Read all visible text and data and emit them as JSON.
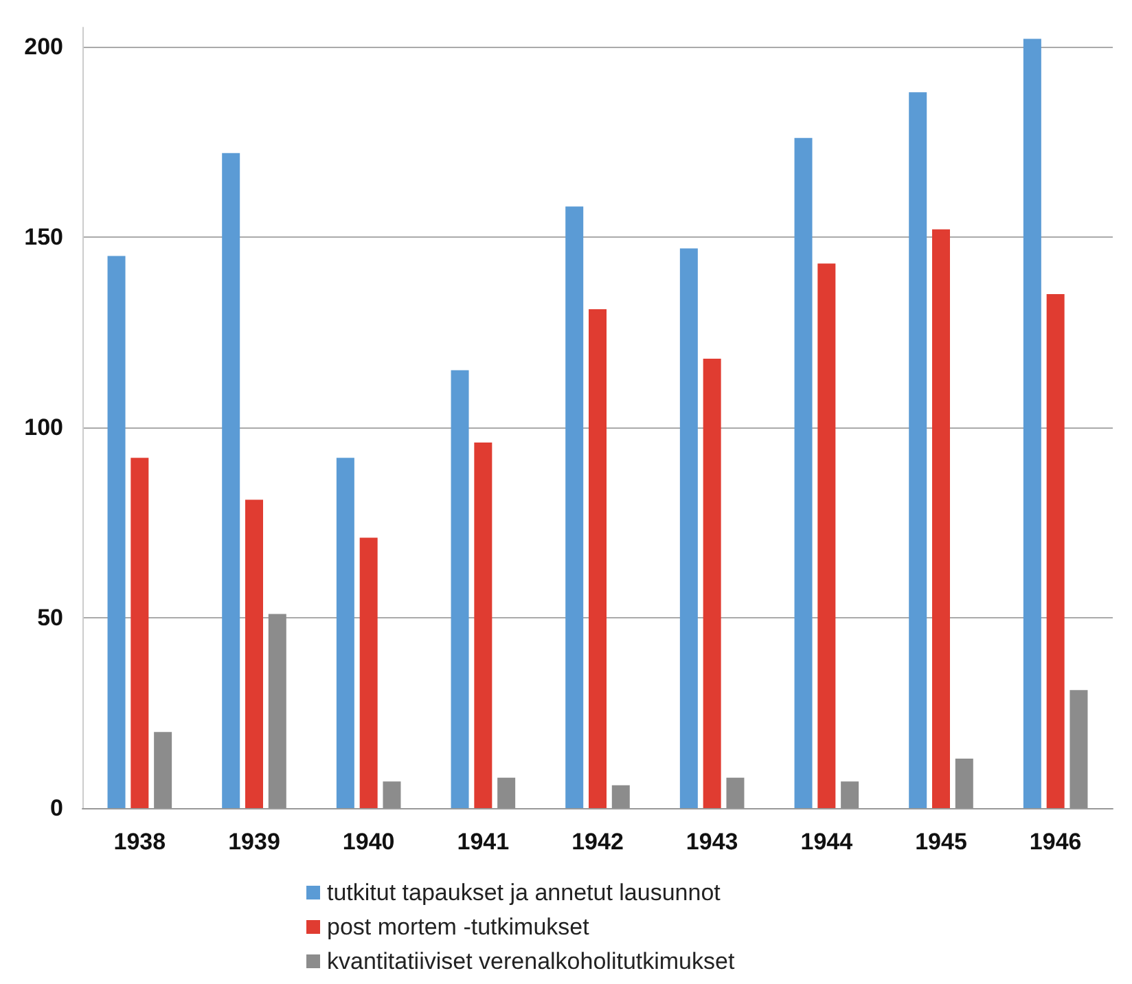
{
  "chart_data": {
    "type": "bar",
    "categories": [
      "1938",
      "1939",
      "1940",
      "1941",
      "1942",
      "1943",
      "1944",
      "1945",
      "1946"
    ],
    "series": [
      {
        "name": "tutkitut tapaukset ja annetut lausunnot",
        "color": "#5b9bd5",
        "values": [
          145,
          172,
          92,
          115,
          158,
          147,
          176,
          188,
          202
        ]
      },
      {
        "name": "post mortem -tutkimukset",
        "color": "#e03c31",
        "values": [
          92,
          81,
          71,
          96,
          131,
          118,
          143,
          152,
          135
        ]
      },
      {
        "name": "kvantitatiiviset verenalkoholitutkimukset",
        "color": "#8c8c8c",
        "values": [
          20,
          51,
          7,
          8,
          6,
          8,
          7,
          13,
          31
        ]
      }
    ],
    "ylim": [
      0,
      205
    ],
    "yticks": [
      0,
      50,
      100,
      150,
      200
    ],
    "grid": "y",
    "legend": "bottom"
  }
}
